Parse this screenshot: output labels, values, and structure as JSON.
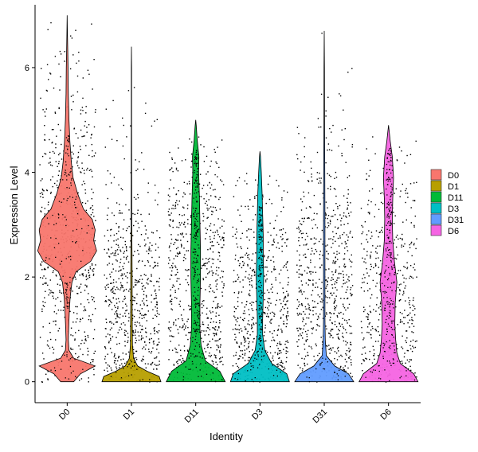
{
  "chart_data": {
    "type": "violin",
    "xlabel": "Identity",
    "ylabel": "Expression Level",
    "ylim": [
      -0.4,
      7.2
    ],
    "yticks": [
      0,
      2,
      4,
      6
    ],
    "grid": false,
    "legend_position": "right",
    "categories": [
      "D0",
      "D1",
      "D11",
      "D3",
      "D31",
      "D6"
    ],
    "series": [
      {
        "name": "D0",
        "color": "#F8766D",
        "max": 7.0,
        "median": 2.75,
        "density": [
          [
            0.0,
            0.22
          ],
          [
            0.15,
            0.45
          ],
          [
            0.3,
            0.95
          ],
          [
            0.45,
            0.22
          ],
          [
            0.6,
            0.06
          ],
          [
            0.8,
            0.04
          ],
          [
            1.0,
            0.05
          ],
          [
            1.3,
            0.07
          ],
          [
            1.6,
            0.1
          ],
          [
            1.9,
            0.16
          ],
          [
            2.1,
            0.3
          ],
          [
            2.3,
            0.8
          ],
          [
            2.5,
            1.0
          ],
          [
            2.7,
            0.9
          ],
          [
            2.9,
            0.95
          ],
          [
            3.1,
            0.85
          ],
          [
            3.3,
            0.55
          ],
          [
            3.6,
            0.35
          ],
          [
            3.9,
            0.2
          ],
          [
            4.2,
            0.14
          ],
          [
            4.6,
            0.09
          ],
          [
            5.0,
            0.06
          ],
          [
            5.5,
            0.04
          ],
          [
            6.0,
            0.03
          ],
          [
            6.3,
            0.02
          ],
          [
            6.8,
            0.005
          ],
          [
            7.0,
            0.0
          ]
        ]
      },
      {
        "name": "D1",
        "color": "#B79F00",
        "max": 6.4,
        "median": 0.3,
        "density": [
          [
            0.0,
            0.85
          ],
          [
            0.1,
            0.8
          ],
          [
            0.2,
            0.45
          ],
          [
            0.3,
            0.18
          ],
          [
            0.45,
            0.06
          ],
          [
            0.7,
            0.03
          ],
          [
            1.0,
            0.025
          ],
          [
            1.5,
            0.02
          ],
          [
            2.0,
            0.02
          ],
          [
            2.5,
            0.015
          ],
          [
            3.0,
            0.01
          ],
          [
            4.0,
            0.008
          ],
          [
            5.0,
            0.005
          ],
          [
            6.0,
            0.004
          ],
          [
            6.4,
            0.0
          ]
        ]
      },
      {
        "name": "D11",
        "color": "#00BA38",
        "max": 5.0,
        "median": 1.9,
        "density": [
          [
            0.0,
            0.55
          ],
          [
            0.2,
            0.45
          ],
          [
            0.4,
            0.18
          ],
          [
            0.7,
            0.1
          ],
          [
            1.0,
            0.08
          ],
          [
            1.5,
            0.08
          ],
          [
            2.0,
            0.09
          ],
          [
            2.5,
            0.09
          ],
          [
            3.0,
            0.08
          ],
          [
            3.5,
            0.07
          ],
          [
            4.0,
            0.055
          ],
          [
            4.3,
            0.06
          ],
          [
            4.6,
            0.03
          ],
          [
            4.9,
            0.01
          ],
          [
            5.0,
            0.0
          ]
        ]
      },
      {
        "name": "D3",
        "color": "#00BFC4",
        "max": 4.4,
        "median": 1.8,
        "density": [
          [
            0.0,
            0.55
          ],
          [
            0.15,
            0.5
          ],
          [
            0.35,
            0.22
          ],
          [
            0.6,
            0.09
          ],
          [
            0.9,
            0.05
          ],
          [
            1.2,
            0.05
          ],
          [
            1.6,
            0.06
          ],
          [
            2.0,
            0.07
          ],
          [
            2.4,
            0.06
          ],
          [
            2.8,
            0.06
          ],
          [
            3.2,
            0.05
          ],
          [
            3.6,
            0.04
          ],
          [
            4.0,
            0.025
          ],
          [
            4.3,
            0.01
          ],
          [
            4.4,
            0.0
          ]
        ]
      },
      {
        "name": "D31",
        "color": "#619CFF",
        "max": 6.7,
        "median": 0.5,
        "density": [
          [
            0.0,
            0.85
          ],
          [
            0.15,
            0.7
          ],
          [
            0.3,
            0.3
          ],
          [
            0.5,
            0.06
          ],
          [
            0.8,
            0.03
          ],
          [
            1.2,
            0.02
          ],
          [
            1.6,
            0.02
          ],
          [
            2.2,
            0.02
          ],
          [
            3.0,
            0.02
          ],
          [
            4.0,
            0.015
          ],
          [
            5.0,
            0.01
          ],
          [
            6.0,
            0.006
          ],
          [
            6.7,
            0.0
          ]
        ]
      },
      {
        "name": "D6",
        "color": "#F564E3",
        "max": 4.9,
        "median": 1.9,
        "density": [
          [
            0.0,
            0.7
          ],
          [
            0.15,
            0.6
          ],
          [
            0.35,
            0.28
          ],
          [
            0.55,
            0.2
          ],
          [
            0.8,
            0.17
          ],
          [
            1.1,
            0.15
          ],
          [
            1.5,
            0.16
          ],
          [
            1.9,
            0.2
          ],
          [
            2.3,
            0.14
          ],
          [
            2.7,
            0.1
          ],
          [
            3.1,
            0.09
          ],
          [
            3.5,
            0.1
          ],
          [
            3.9,
            0.12
          ],
          [
            4.3,
            0.09
          ],
          [
            4.6,
            0.04
          ],
          [
            4.9,
            0.0
          ]
        ]
      }
    ]
  }
}
